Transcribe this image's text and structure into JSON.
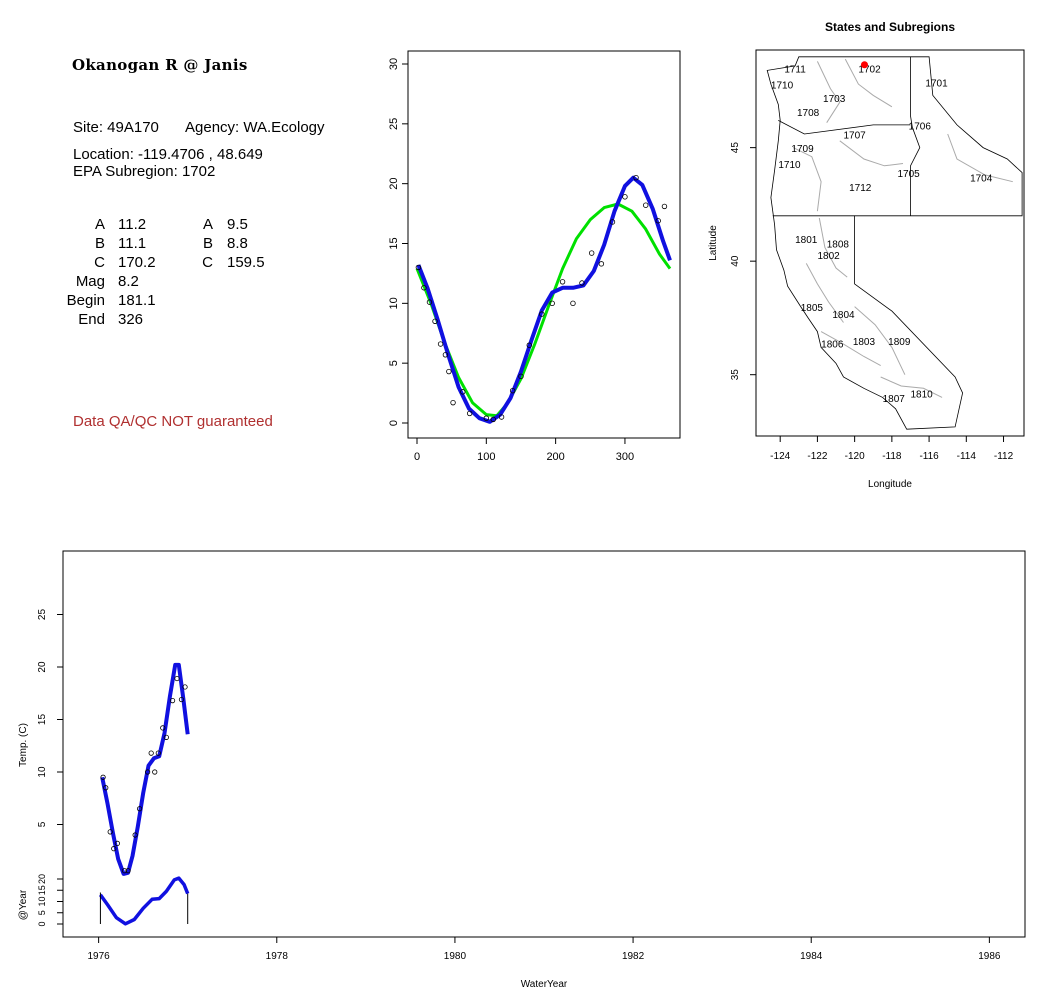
{
  "site": {
    "title": "Okanogan R @ Janis",
    "site_line_label": "Site: 49A170",
    "agency_label": "Agency: WA.Ecology",
    "location_label": "Location: -119.4706 , 48.649",
    "subregion_label": "EPA Subregion: 1702",
    "params_left": [
      {
        "k": "A",
        "v": "11.2"
      },
      {
        "k": "B",
        "v": "11.1"
      },
      {
        "k": "C",
        "v": "170.2"
      },
      {
        "k": "Mag",
        "v": "8.2"
      },
      {
        "k": "Begin",
        "v": "181.1"
      },
      {
        "k": "End",
        "v": "326"
      }
    ],
    "params_right": [
      {
        "k": "A",
        "v": "9.5"
      },
      {
        "k": "B",
        "v": "8.8"
      },
      {
        "k": "C",
        "v": "159.5"
      }
    ],
    "disclaimer": "Data QA/QC NOT guaranteed",
    "disclaimer_color": "#b03030"
  },
  "chart_data": [
    {
      "type": "scatter",
      "id": "seasonal",
      "xlim": [
        0,
        365
      ],
      "ylim": [
        0,
        30
      ],
      "xticks": [
        0,
        100,
        200,
        300
      ],
      "yticks": [
        0,
        5,
        10,
        15,
        20,
        25,
        30
      ],
      "points": [
        [
          2,
          13.0
        ],
        [
          10,
          11.3
        ],
        [
          18,
          10.1
        ],
        [
          26,
          8.5
        ],
        [
          34,
          6.6
        ],
        [
          41,
          5.7
        ],
        [
          46,
          4.3
        ],
        [
          52,
          1.7
        ],
        [
          66,
          2.6
        ],
        [
          76,
          0.8
        ],
        [
          100,
          0.4
        ],
        [
          110,
          0.3
        ],
        [
          122,
          0.5
        ],
        [
          138,
          2.7
        ],
        [
          150,
          3.9
        ],
        [
          162,
          6.5
        ],
        [
          180,
          9.1
        ],
        [
          195,
          10.0
        ],
        [
          210,
          11.8
        ],
        [
          225,
          10.0
        ],
        [
          238,
          11.7
        ],
        [
          252,
          14.2
        ],
        [
          266,
          13.3
        ],
        [
          282,
          16.8
        ],
        [
          300,
          18.9
        ],
        [
          316,
          20.5
        ],
        [
          330,
          18.2
        ],
        [
          348,
          16.9
        ],
        [
          357,
          18.1
        ]
      ],
      "series": [
        {
          "name": "",
          "color": "#00e000",
          "values": [
            [
              0,
              12.9
            ],
            [
              20,
              10.0
            ],
            [
              40,
              6.7
            ],
            [
              60,
              3.8
            ],
            [
              80,
              1.7
            ],
            [
              100,
              0.7
            ],
            [
              115,
              0.6
            ],
            [
              130,
              1.6
            ],
            [
              150,
              3.7
            ],
            [
              170,
              6.6
            ],
            [
              190,
              9.8
            ],
            [
              210,
              12.9
            ],
            [
              230,
              15.4
            ],
            [
              250,
              17.0
            ],
            [
              270,
              18.0
            ],
            [
              290,
              18.3
            ],
            [
              310,
              17.7
            ],
            [
              330,
              16.2
            ],
            [
              350,
              14.1
            ],
            [
              365,
              12.9
            ]
          ]
        },
        {
          "name": "",
          "color": "#1010e0",
          "values": [
            [
              2,
              13.2
            ],
            [
              15,
              11.3
            ],
            [
              30,
              8.6
            ],
            [
              45,
              5.7
            ],
            [
              60,
              3.0
            ],
            [
              75,
              1.2
            ],
            [
              90,
              0.4
            ],
            [
              105,
              0.1
            ],
            [
              120,
              0.7
            ],
            [
              135,
              2.1
            ],
            [
              150,
              4.3
            ],
            [
              165,
              6.9
            ],
            [
              180,
              9.4
            ],
            [
              195,
              10.9
            ],
            [
              210,
              11.3
            ],
            [
              225,
              11.3
            ],
            [
              240,
              11.5
            ],
            [
              255,
              12.7
            ],
            [
              270,
              14.9
            ],
            [
              285,
              17.7
            ],
            [
              300,
              19.8
            ],
            [
              312,
              20.5
            ],
            [
              325,
              19.9
            ],
            [
              340,
              17.9
            ],
            [
              355,
              15.2
            ],
            [
              365,
              13.6
            ]
          ]
        }
      ]
    },
    {
      "type": "map",
      "id": "states-subregions",
      "title": "States and Subregions",
      "xlabel": "Longitude",
      "ylabel": "Latitude",
      "xlim": [
        -125.3,
        -110.9
      ],
      "ylim": [
        32.3,
        49.3
      ],
      "xticks": [
        -124,
        -122,
        -120,
        -118,
        -116,
        -114,
        -112
      ],
      "yticks": [
        35,
        40,
        45
      ],
      "site_point": {
        "lon": -119.4706,
        "lat": 48.649,
        "color": "#ff0000"
      },
      "labels": [
        {
          "text": "1711",
          "lon": -123.2,
          "lat": 48.3
        },
        {
          "text": "1702",
          "lon": -119.2,
          "lat": 48.3
        },
        {
          "text": "1701",
          "lon": -115.6,
          "lat": 47.7
        },
        {
          "text": "1710",
          "lon": -123.9,
          "lat": 47.6
        },
        {
          "text": "1703",
          "lon": -121.1,
          "lat": 47.0
        },
        {
          "text": "1708",
          "lon": -122.5,
          "lat": 46.4
        },
        {
          "text": "1706",
          "lon": -116.5,
          "lat": 45.8
        },
        {
          "text": "1707",
          "lon": -120.0,
          "lat": 45.4
        },
        {
          "text": "1709",
          "lon": -122.8,
          "lat": 44.8
        },
        {
          "text": "1710",
          "lon": -123.5,
          "lat": 44.1
        },
        {
          "text": "1705",
          "lon": -117.1,
          "lat": 43.7
        },
        {
          "text": "1704",
          "lon": -113.2,
          "lat": 43.5
        },
        {
          "text": "1712",
          "lon": -119.7,
          "lat": 43.1
        },
        {
          "text": "1801",
          "lon": -122.6,
          "lat": 40.8
        },
        {
          "text": "1808",
          "lon": -120.9,
          "lat": 40.6
        },
        {
          "text": "1802",
          "lon": -121.4,
          "lat": 40.1
        },
        {
          "text": "1805",
          "lon": -122.3,
          "lat": 37.8
        },
        {
          "text": "1804",
          "lon": -120.6,
          "lat": 37.5
        },
        {
          "text": "1809",
          "lon": -117.6,
          "lat": 36.3
        },
        {
          "text": "1806",
          "lon": -121.2,
          "lat": 36.2
        },
        {
          "text": "1803",
          "lon": -119.5,
          "lat": 36.3
        },
        {
          "text": "1810",
          "lon": -116.4,
          "lat": 34.0
        },
        {
          "text": "1807",
          "lon": -117.9,
          "lat": 33.8
        }
      ]
    },
    {
      "type": "line",
      "id": "timeseries",
      "xlabel": "WaterYear",
      "ylabel": "Temp. (C)",
      "sub_ylabel": "@Year",
      "xlim": [
        1975.6,
        1986.4
      ],
      "ylim": [
        0,
        30
      ],
      "xticks": [
        1976,
        1978,
        1980,
        1982,
        1984,
        1986
      ],
      "yticks": [
        5,
        10,
        15,
        20,
        25
      ],
      "sub_yticks": [
        0,
        5,
        10,
        15,
        20
      ],
      "points": [
        [
          1976.05,
          9.5
        ],
        [
          1976.08,
          8.5
        ],
        [
          1976.13,
          4.3
        ],
        [
          1976.17,
          2.7
        ],
        [
          1976.21,
          3.2
        ],
        [
          1976.29,
          0.6
        ],
        [
          1976.33,
          0.6
        ],
        [
          1976.41,
          4.0
        ],
        [
          1976.46,
          6.5
        ],
        [
          1976.55,
          10.0
        ],
        [
          1976.59,
          11.8
        ],
        [
          1976.63,
          10.0
        ],
        [
          1976.67,
          11.8
        ],
        [
          1976.72,
          14.2
        ],
        [
          1976.76,
          13.3
        ],
        [
          1976.83,
          16.8
        ],
        [
          1976.88,
          18.9
        ],
        [
          1976.93,
          16.9
        ],
        [
          1976.97,
          18.1
        ]
      ],
      "series": [
        {
          "name": "",
          "color": "#1010e0",
          "values": [
            [
              1976.04,
              9.5
            ],
            [
              1976.1,
              7.0
            ],
            [
              1976.16,
              4.2
            ],
            [
              1976.22,
              1.7
            ],
            [
              1976.28,
              0.3
            ],
            [
              1976.33,
              0.4
            ],
            [
              1976.38,
              2.0
            ],
            [
              1976.44,
              4.8
            ],
            [
              1976.5,
              8.0
            ],
            [
              1976.56,
              10.6
            ],
            [
              1976.62,
              11.3
            ],
            [
              1976.68,
              11.5
            ],
            [
              1976.74,
              13.7
            ],
            [
              1976.8,
              17.2
            ],
            [
              1976.86,
              20.2
            ],
            [
              1976.9,
              20.2
            ],
            [
              1976.95,
              17.0
            ],
            [
              1977.0,
              13.6
            ]
          ]
        }
      ],
      "sub_series": [
        {
          "name": "",
          "color": "#1010e0",
          "values": [
            [
              1976.02,
              13.0
            ],
            [
              1976.1,
              8.6
            ],
            [
              1976.2,
              2.8
            ],
            [
              1976.3,
              0.1
            ],
            [
              1976.4,
              2.0
            ],
            [
              1976.5,
              7.0
            ],
            [
              1976.6,
              11.0
            ],
            [
              1976.68,
              11.3
            ],
            [
              1976.76,
              14.5
            ],
            [
              1976.85,
              19.6
            ],
            [
              1976.9,
              20.4
            ],
            [
              1976.96,
              17.5
            ],
            [
              1977.0,
              13.5
            ]
          ]
        }
      ]
    }
  ]
}
